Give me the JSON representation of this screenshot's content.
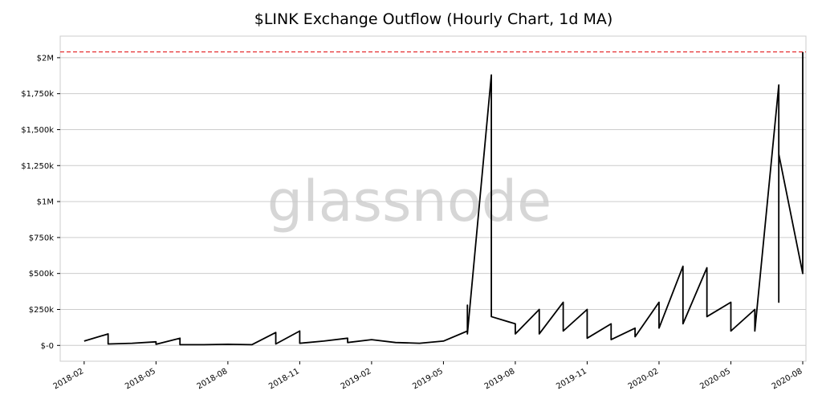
{
  "chart_data": {
    "type": "line",
    "title": "$LINK Exchange Outflow (Hourly Chart, 1d MA)",
    "watermark": "glassnode",
    "x": [
      "2018-02",
      "2018-03",
      "2018-03",
      "2018-04",
      "2018-05",
      "2018-05",
      "2018-06",
      "2018-06",
      "2018-07",
      "2018-08",
      "2018-09",
      "2018-10",
      "2018-10",
      "2018-11",
      "2018-11",
      "2018-12",
      "2019-01",
      "2019-01",
      "2019-02",
      "2019-03",
      "2019-04",
      "2019-05",
      "2019-06",
      "2019-06",
      "2019-06",
      "2019-07",
      "2019-07",
      "2019-07",
      "2019-08",
      "2019-08",
      "2019-09",
      "2019-09",
      "2019-10",
      "2019-10",
      "2019-11",
      "2019-11",
      "2019-12",
      "2019-12",
      "2020-01",
      "2020-01",
      "2020-02",
      "2020-02",
      "2020-03",
      "2020-03",
      "2020-04",
      "2020-04",
      "2020-05",
      "2020-05",
      "2020-06",
      "2020-06",
      "2020-07",
      "2020-07",
      "2020-07",
      "2020-08",
      "2020-08"
    ],
    "series": [
      {
        "color": "#000000",
        "values": [
          30000,
          80000,
          10000,
          15000,
          25000,
          8000,
          50000,
          5000,
          5000,
          8000,
          5000,
          90000,
          10000,
          100000,
          15000,
          30000,
          50000,
          20000,
          40000,
          20000,
          15000,
          30000,
          100000,
          280000,
          80000,
          1880000,
          700000,
          200000,
          150000,
          80000,
          250000,
          80000,
          300000,
          100000,
          250000,
          50000,
          150000,
          40000,
          120000,
          60000,
          300000,
          120000,
          550000,
          150000,
          540000,
          200000,
          300000,
          100000,
          250000,
          100000,
          1810000,
          300000,
          1330000,
          500000,
          2040000
        ]
      }
    ],
    "xlim": [
      "2018-01",
      "2020-08"
    ],
    "xticks": [
      "2018-02",
      "2018-05",
      "2018-08",
      "2018-11",
      "2019-02",
      "2019-05",
      "2019-08",
      "2019-11",
      "2020-02",
      "2020-05",
      "2020-08"
    ],
    "ylim": [
      -110000,
      2150000
    ],
    "yticks": [
      {
        "value": 0,
        "label": "$-0"
      },
      {
        "value": 250000,
        "label": "$250k"
      },
      {
        "value": 500000,
        "label": "$500k"
      },
      {
        "value": 750000,
        "label": "$750k"
      },
      {
        "value": 1000000,
        "label": "$1M"
      },
      {
        "value": 1250000,
        "label": "$1,250k"
      },
      {
        "value": 1500000,
        "label": "$1,500k"
      },
      {
        "value": 1750000,
        "label": "$1,750k"
      },
      {
        "value": 2000000,
        "label": "$2M"
      }
    ],
    "hline": {
      "value": 2040000,
      "color": "#e31a1c"
    },
    "grid": true
  }
}
